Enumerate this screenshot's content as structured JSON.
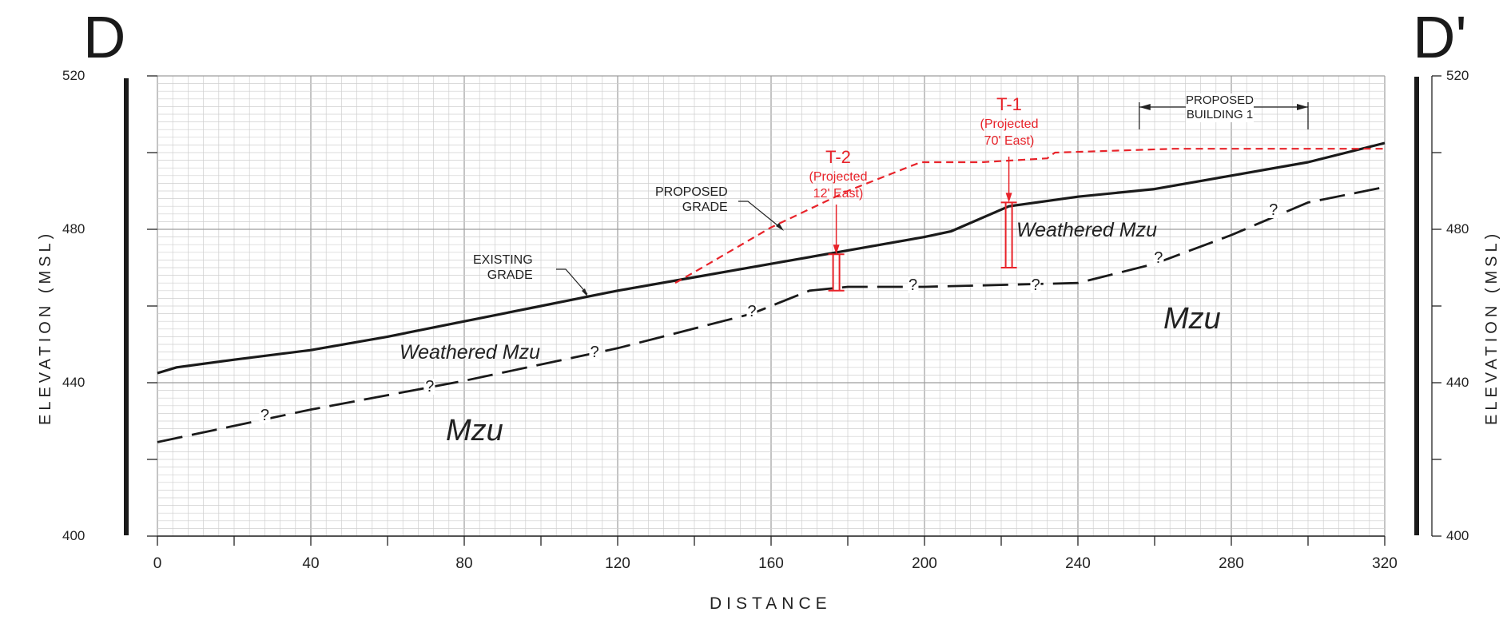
{
  "section": {
    "left_label": "D",
    "right_label": "D'"
  },
  "axes": {
    "x_title": "DISTANCE",
    "y_title": "ELEVATION (MSL)",
    "x_ticks": [
      "0",
      "40",
      "80",
      "120",
      "160",
      "200",
      "240",
      "280",
      "320"
    ],
    "y_ticks": [
      "400",
      "440",
      "480",
      "520"
    ]
  },
  "annotations": {
    "existing_grade": "EXISTING\nGRADE",
    "proposed_grade": "PROPOSED\nGRADE",
    "proposed_building": "PROPOSED\nBUILDING 1"
  },
  "units": {
    "weathered_left": "Weathered Mzu",
    "weathered_right": "Weathered Mzu",
    "mzu_left": "Mzu",
    "mzu_right": "Mzu"
  },
  "borings": {
    "t1": {
      "name": "T-1",
      "note": "(Projected\n70' East)"
    },
    "t2": {
      "name": "T-2",
      "note": "(Projected\n12' East)"
    }
  },
  "question_mark": "?",
  "colors": {
    "line": "#1a1a1a",
    "proposed": "#e8232a",
    "grid_minor": "#cfcfcf",
    "grid_major": "#9d9d9d"
  },
  "chart_data": {
    "type": "line",
    "xlabel": "DISTANCE",
    "ylabel": "ELEVATION (MSL)",
    "xlim": [
      0,
      320
    ],
    "ylim": [
      400,
      520
    ],
    "series": [
      {
        "role": "existing_grade",
        "style": "solid",
        "x": [
          0,
          5,
          20,
          40,
          60,
          80,
          100,
          120,
          140,
          160,
          180,
          200,
          207,
          222,
          240,
          260,
          280,
          300,
          320
        ],
        "y": [
          442.5,
          444,
          446,
          448.5,
          452,
          456,
          460,
          464,
          467.5,
          471,
          474.5,
          478,
          479.5,
          486,
          488.5,
          490.5,
          494,
          497.5,
          502.5
        ]
      },
      {
        "role": "proposed_grade",
        "style": "dashed",
        "x": [
          135,
          142,
          160,
          180,
          199,
          215,
          232,
          234,
          265,
          320
        ],
        "y": [
          466,
          470,
          480.5,
          490,
          497.5,
          497.5,
          498.5,
          500,
          501,
          501
        ]
      },
      {
        "role": "weathered_contact",
        "style": "long-dash",
        "x": [
          0,
          40,
          80,
          120,
          155,
          170,
          180,
          200,
          240,
          260,
          280,
          300,
          320
        ],
        "y": [
          424.5,
          433,
          440.5,
          449,
          458,
          464,
          465,
          465,
          466,
          471,
          478.5,
          487,
          491
        ]
      }
    ],
    "borings": [
      {
        "name": "T-1",
        "x": 222,
        "y_top": 487,
        "y_bottom": 470
      },
      {
        "name": "T-2",
        "x": 177,
        "y_top": 473.5,
        "y_bottom": 464
      }
    ],
    "proposed_building": {
      "x_start": 256,
      "x_end": 300
    },
    "question_marks": [
      {
        "x": 28,
        "y": 431.5
      },
      {
        "x": 71,
        "y": 439
      },
      {
        "x": 114,
        "y": 448
      },
      {
        "x": 155,
        "y": 458.5
      },
      {
        "x": 197,
        "y": 465.5
      },
      {
        "x": 229,
        "y": 465.5
      },
      {
        "x": 261,
        "y": 472.5
      },
      {
        "x": 291,
        "y": 485
      }
    ]
  }
}
